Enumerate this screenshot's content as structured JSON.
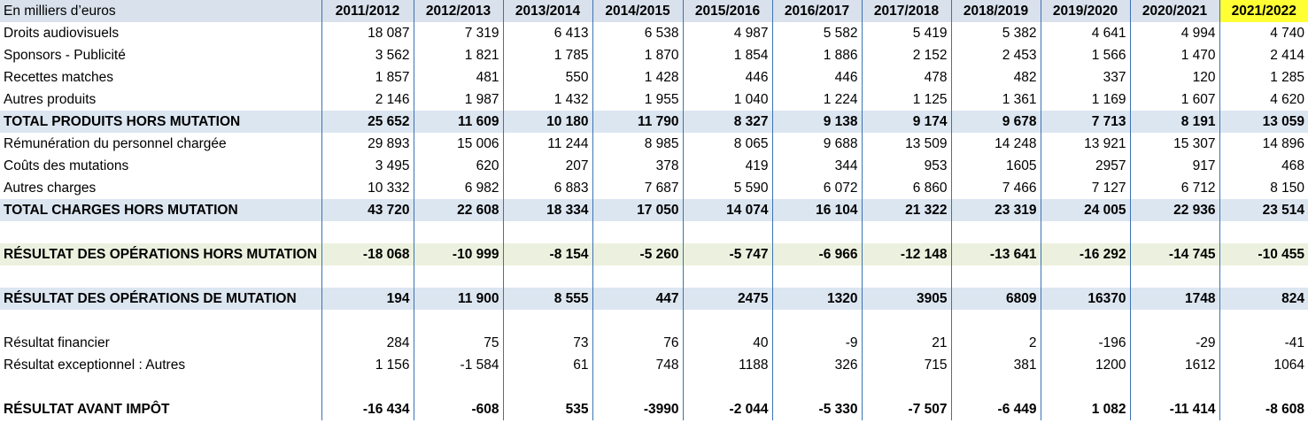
{
  "table": {
    "unit_label": "En milliers d’euros",
    "years": [
      "2011/2012",
      "2012/2013",
      "2013/2014",
      "2014/2015",
      "2015/2016",
      "2016/2017",
      "2017/2018",
      "2018/2019",
      "2019/2020",
      "2020/2021",
      "2021/2022"
    ],
    "highlight_color": "#ffff33",
    "rows": [
      {
        "kind": "data",
        "label": "Droits audiovisuels",
        "values": [
          "18 087",
          "7 319",
          "6 413",
          "6 538",
          "4 987",
          "5 582",
          "5 419",
          "5 382",
          "4 641",
          "4 994",
          "4 740"
        ]
      },
      {
        "kind": "data",
        "label": "Sponsors - Publicité",
        "values": [
          "3 562",
          "1 821",
          "1 785",
          "1 870",
          "1 854",
          "1 886",
          "2 152",
          "2 453",
          "1 566",
          "1 470",
          "2 414"
        ]
      },
      {
        "kind": "data",
        "label": "Recettes matches",
        "values": [
          "1 857",
          "481",
          "550",
          "1 428",
          "446",
          "446",
          "478",
          "482",
          "337",
          "120",
          "1 285"
        ]
      },
      {
        "kind": "data",
        "label": "Autres produits",
        "values": [
          "2 146",
          "1 987",
          "1 432",
          "1 955",
          "1 040",
          "1 224",
          "1 125",
          "1 361",
          "1 169",
          "1 607",
          "4 620"
        ]
      },
      {
        "kind": "total",
        "label": "TOTAL PRODUITS HORS MUTATION",
        "values": [
          "25 652",
          "11 609",
          "10 180",
          "11 790",
          "8 327",
          "9 138",
          "9 174",
          "9 678",
          "7 713",
          "8 191",
          "13 059"
        ]
      },
      {
        "kind": "data",
        "label": "Rémunération du personnel chargée",
        "values": [
          "29 893",
          "15 006",
          "11 244",
          "8 985",
          "8 065",
          "9 688",
          "13 509",
          "14 248",
          "13 921",
          "15 307",
          "14 896"
        ]
      },
      {
        "kind": "data",
        "label": "Coûts des mutations",
        "values": [
          "3 495",
          "620",
          "207",
          "378",
          "419",
          "344",
          "953",
          "1605",
          "2957",
          "917",
          "468"
        ]
      },
      {
        "kind": "data",
        "label": "Autres charges",
        "values": [
          "10 332",
          "6 982",
          "6 883",
          "7 687",
          "5 590",
          "6 072",
          "6 860",
          "7 466",
          "7 127",
          "6 712",
          "8 150"
        ]
      },
      {
        "kind": "total",
        "label": "TOTAL CHARGES HORS MUTATION",
        "values": [
          "43 720",
          "22 608",
          "18 334",
          "17 050",
          "14 074",
          "16 104",
          "21 322",
          "23 319",
          "24 005",
          "22 936",
          "23 514"
        ]
      },
      {
        "kind": "spacer",
        "label": "",
        "values": [
          "",
          "",
          "",
          "",
          "",
          "",
          "",
          "",
          "",
          "",
          ""
        ]
      },
      {
        "kind": "result1",
        "label": "RÉSULTAT DES OPÉRATIONS HORS MUTATION",
        "values": [
          "-18 068",
          "-10 999",
          "-8 154",
          "-5 260",
          "-5 747",
          "-6 966",
          "-12 148",
          "-13 641",
          "-16 292",
          "-14 745",
          "-10 455"
        ]
      },
      {
        "kind": "spacer",
        "label": "",
        "values": [
          "",
          "",
          "",
          "",
          "",
          "",
          "",
          "",
          "",
          "",
          ""
        ]
      },
      {
        "kind": "result2",
        "label": "RÉSULTAT DES OPÉRATIONS DE MUTATION",
        "values": [
          "194",
          "11 900",
          "8 555",
          "447",
          "2475",
          "1320",
          "3905",
          "6809",
          "16370",
          "1748",
          "824"
        ]
      },
      {
        "kind": "spacer",
        "label": "",
        "values": [
          "",
          "",
          "",
          "",
          "",
          "",
          "",
          "",
          "",
          "",
          ""
        ]
      },
      {
        "kind": "data",
        "label": "Résultat financier",
        "values": [
          "284",
          "75",
          "73",
          "76",
          "40",
          "-9",
          "21",
          "2",
          "-196",
          "-29",
          "-41"
        ]
      },
      {
        "kind": "data",
        "label": "Résultat exceptionnel : Autres",
        "values": [
          "1 156",
          "-1 584",
          "61",
          "748",
          "1188",
          "326",
          "715",
          "381",
          "1200",
          "1612",
          "1064"
        ]
      },
      {
        "kind": "spacer",
        "label": "",
        "values": [
          "",
          "",
          "",
          "",
          "",
          "",
          "",
          "",
          "",
          "",
          ""
        ]
      },
      {
        "kind": "final",
        "label": "RÉSULTAT AVANT IMPÔT",
        "values": [
          "-16 434",
          "-608",
          "535",
          "-3990",
          "-2 044",
          "-5 330",
          "-7 507",
          "-6 449",
          "1 082",
          "-11 414",
          "-8 608"
        ]
      }
    ]
  }
}
